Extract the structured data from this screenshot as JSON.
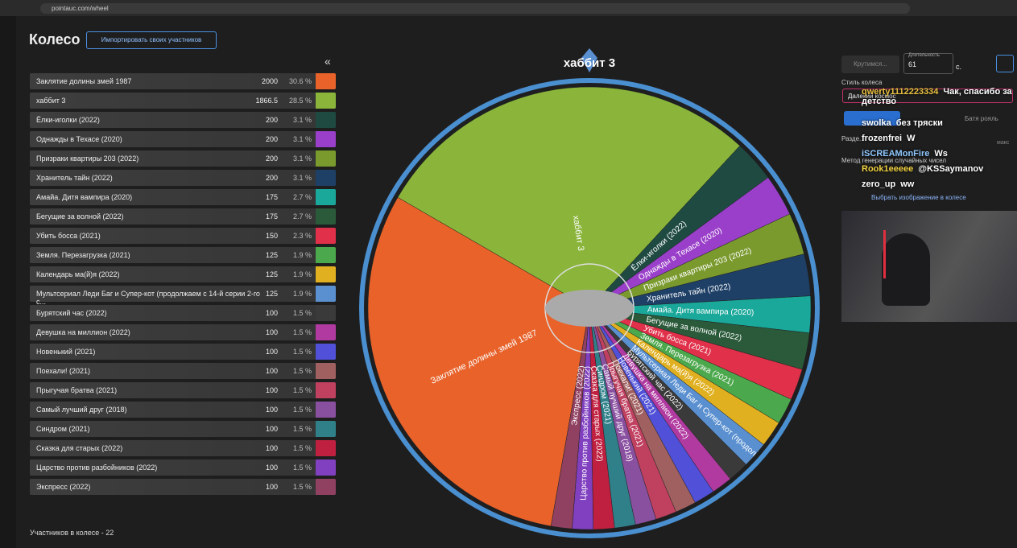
{
  "browser": {
    "url": "pointauc.com/wheel"
  },
  "header": {
    "title": "Колесо",
    "import_button": "Импортировать своих участников",
    "collapse": "«"
  },
  "rows": [
    {
      "name": "Заклятие долины змей 1987",
      "amount": 2000,
      "percent": "30.6 %",
      "color": "#e8622a"
    },
    {
      "name": "хаббит 3",
      "amount": 1866.5,
      "percent": "28.5 %",
      "color": "#8ab53a"
    },
    {
      "name": "Ёлки-иголки (2022)",
      "amount": 200,
      "percent": "3.1 %",
      "color": "#1f4a42"
    },
    {
      "name": "Однажды в Техасе (2020)",
      "amount": 200,
      "percent": "3.1 %",
      "color": "#9a3fc9"
    },
    {
      "name": "Призраки квартиры 203 (2022)",
      "amount": 200,
      "percent": "3.1 %",
      "color": "#7a9a2e"
    },
    {
      "name": "Хранитель тайн (2022)",
      "amount": 200,
      "percent": "3.1 %",
      "color": "#1e3f66"
    },
    {
      "name": "Амайа. Дитя вампира (2020)",
      "amount": 175,
      "percent": "2.7 %",
      "color": "#1aa89a"
    },
    {
      "name": "Бегущие за волной (2022)",
      "amount": 175,
      "percent": "2.7 %",
      "color": "#2a5a3a"
    },
    {
      "name": "Убить босса (2021)",
      "amount": 150,
      "percent": "2.3 %",
      "color": "#e0304a"
    },
    {
      "name": "Земля. Перезагрузка (2021)",
      "amount": 125,
      "percent": "1.9 %",
      "color": "#4ca84c"
    },
    {
      "name": "Календарь ма(й)я (2022)",
      "amount": 125,
      "percent": "1.9 %",
      "color": "#e0b020"
    },
    {
      "name": "Мультсериал Леди Баг и Супер-кот (продолжаем с 14-й серии 2-го с...",
      "amount": 125,
      "percent": "1.9 %",
      "color": "#5a90d0"
    },
    {
      "name": "Бурятский час (2022)",
      "amount": 100,
      "percent": "1.5 %",
      "color": "#3a3a3a"
    },
    {
      "name": "Девушка на миллион (2022)",
      "amount": 100,
      "percent": "1.5 %",
      "color": "#b03aa0"
    },
    {
      "name": "Новенький (2021)",
      "amount": 100,
      "percent": "1.5 %",
      "color": "#5050d8"
    },
    {
      "name": "Поехали! (2021)",
      "amount": 100,
      "percent": "1.5 %",
      "color": "#a06060"
    },
    {
      "name": "Прыгучая братва (2021)",
      "amount": 100,
      "percent": "1.5 %",
      "color": "#c04060"
    },
    {
      "name": "Самый лучший друг (2018)",
      "amount": 100,
      "percent": "1.5 %",
      "color": "#8a50a0"
    },
    {
      "name": "Синдром (2021)",
      "amount": 100,
      "percent": "1.5 %",
      "color": "#30808a"
    },
    {
      "name": "Сказка для старых (2022)",
      "amount": 100,
      "percent": "1.5 %",
      "color": "#c02040"
    },
    {
      "name": "Царство против разбойников (2022)",
      "amount": 100,
      "percent": "1.5 %",
      "color": "#8040c0"
    },
    {
      "name": "Экспресс (2022)",
      "amount": 100,
      "percent": "1.5 %",
      "color": "#904060"
    }
  ],
  "footer": "Участников в колесе - 22",
  "wheel": {
    "winner": "хаббит 3"
  },
  "controls": {
    "spin_button": "Крутимся...",
    "duration_label": "Длительность",
    "duration": 61,
    "duration_unit": "с.",
    "style_label": "Стиль колеса",
    "style_value": "Далекий космос",
    "tab": "Батя рояль",
    "split_label": "Разде...",
    "max_label": "макс",
    "rng_label": "Метод генерации случайных чисел",
    "image_link": "Выбрать изображение в колесе"
  },
  "chat": [
    {
      "user": "qwerty1112223334",
      "color": "#e8c040",
      "text": "Чак, спасибо за детство"
    },
    {
      "user": "swolka",
      "color": "#ffffff",
      "text": "без тряски"
    },
    {
      "user": "frozenfrei",
      "color": "#ffffff",
      "text": "W"
    },
    {
      "user": "iSCREAMonFire",
      "color": "#8fc8ff",
      "text": "Ws"
    },
    {
      "user": "Rook1eeeee",
      "color": "#f0d040",
      "text": "@KSSaymanov"
    },
    {
      "user": "zero_up",
      "color": "#ffffff",
      "text": "ww"
    }
  ]
}
